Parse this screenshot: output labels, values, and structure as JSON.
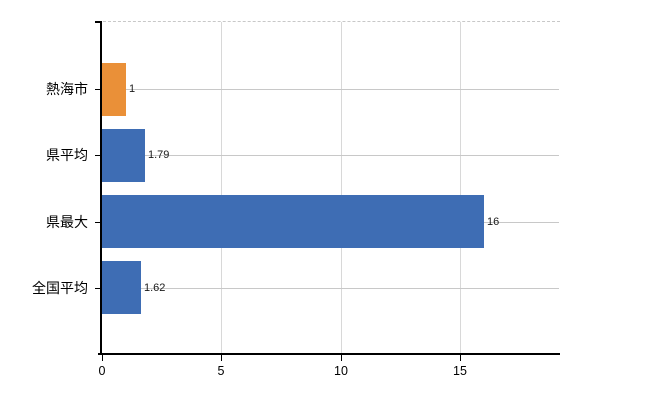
{
  "chart_data": {
    "type": "bar",
    "orientation": "horizontal",
    "title": "",
    "categories": [
      "熱海市",
      "県平均",
      "県最大",
      "全国平均"
    ],
    "values": [
      1,
      1.79,
      16,
      1.62
    ],
    "value_labels": [
      "1",
      "1.79",
      "16",
      "1.62"
    ],
    "bar_colors": [
      "#EA9038",
      "#3E6DB4",
      "#3E6DB4",
      "#3E6DB4"
    ],
    "x_ticks": [
      0,
      5,
      10,
      15
    ],
    "x_tick_labels": [
      "0",
      "5",
      "10",
      "15"
    ],
    "xlim": [
      0,
      19.2
    ],
    "grid": true,
    "legend_position": "none"
  },
  "colors": {
    "bar_orange": "#EA9038",
    "bar_blue": "#3E6DB4",
    "axis": "#000000",
    "row_gridline": "#c8c8c8",
    "vertical_gridline": "#d8d8d8",
    "top_border": "#c8c8c8",
    "text": "#1a1a1a",
    "background": "#ffffff"
  }
}
